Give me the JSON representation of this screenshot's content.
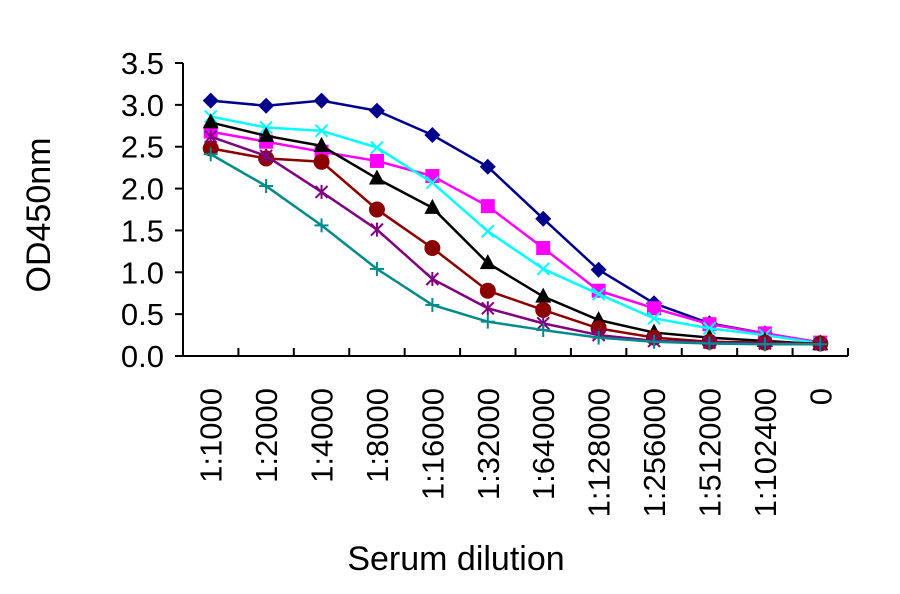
{
  "chart_data": {
    "type": "line",
    "xlabel": "Serum dilution",
    "ylabel": "OD450nm",
    "ylim": [
      0,
      3.5
    ],
    "yticks": [
      "0.0",
      "0.5",
      "1.0",
      "1.5",
      "2.0",
      "2.5",
      "3.0",
      "3.5"
    ],
    "grid": false,
    "legend": "none",
    "categories": [
      "1:1000",
      "1:2000",
      "1:4000",
      "1:8000",
      "1:16000",
      "1:32000",
      "1:64000",
      "1:128000",
      "1:256000",
      "1:512000",
      "1:102400",
      "0"
    ],
    "series": [
      {
        "color": "#00008b",
        "marker": "diamond",
        "values": [
          3.05,
          2.99,
          3.05,
          2.93,
          2.64,
          2.26,
          1.64,
          1.03,
          0.63,
          0.39,
          0.27,
          0.16
        ]
      },
      {
        "color": "#ff00ff",
        "marker": "square",
        "values": [
          2.68,
          2.56,
          2.44,
          2.33,
          2.15,
          1.79,
          1.29,
          0.78,
          0.57,
          0.38,
          0.27,
          0.16
        ]
      },
      {
        "color": "#00ffff",
        "marker": "x",
        "values": [
          2.86,
          2.73,
          2.69,
          2.49,
          2.07,
          1.49,
          1.04,
          0.74,
          0.45,
          0.33,
          0.25,
          0.15
        ]
      },
      {
        "color": "#000000",
        "marker": "triangle",
        "values": [
          2.79,
          2.63,
          2.51,
          2.12,
          1.77,
          1.11,
          0.71,
          0.43,
          0.28,
          0.22,
          0.18,
          0.14
        ]
      },
      {
        "color": "#8b0000",
        "marker": "circle",
        "values": [
          2.48,
          2.36,
          2.32,
          1.75,
          1.29,
          0.78,
          0.55,
          0.33,
          0.22,
          0.17,
          0.16,
          0.15
        ]
      },
      {
        "color": "#800080",
        "marker": "asterisk",
        "values": [
          2.62,
          2.39,
          1.96,
          1.51,
          0.92,
          0.57,
          0.39,
          0.25,
          0.18,
          0.16,
          0.15,
          0.14
        ]
      },
      {
        "color": "#008b8b",
        "marker": "plus",
        "values": [
          2.41,
          2.03,
          1.56,
          1.04,
          0.61,
          0.41,
          0.31,
          0.22,
          0.17,
          0.15,
          0.14,
          0.14
        ]
      }
    ]
  }
}
